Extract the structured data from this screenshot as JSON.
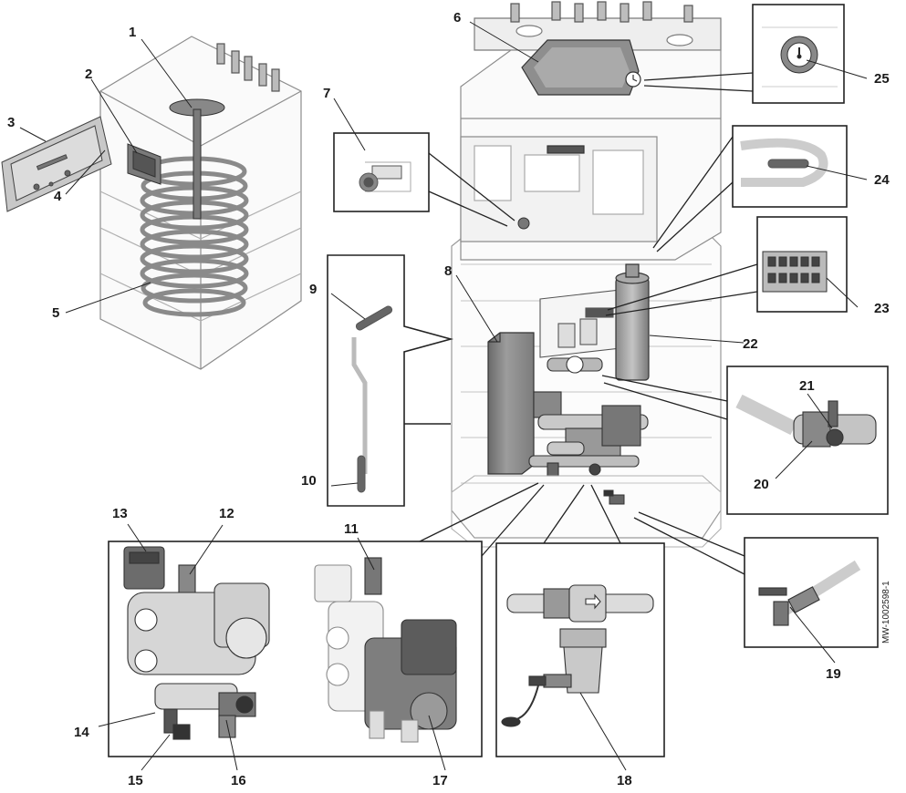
{
  "callouts": [
    "1",
    "2",
    "3",
    "4",
    "5",
    "6",
    "7",
    "8",
    "9",
    "10",
    "11",
    "12",
    "13",
    "14",
    "15",
    "16",
    "17",
    "18",
    "19",
    "20",
    "21",
    "22",
    "23",
    "24",
    "25"
  ],
  "drawing_code": "MW-1002598-1",
  "colors": {
    "line": "#222222",
    "appliance_fill": "#ffffff",
    "component_dark": "#6e6e6e",
    "component_mid": "#9a9a9a",
    "component_light": "#cfcfcf",
    "faint_outline": "#c8c8c8"
  }
}
